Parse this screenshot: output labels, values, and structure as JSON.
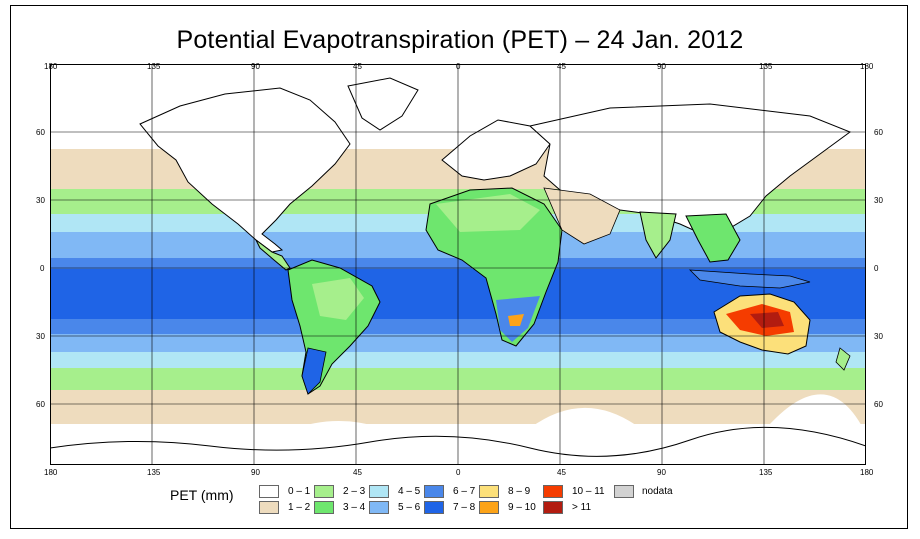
{
  "title": "Potential Evapotranspiration (PET) – 24 Jan. 2012",
  "axes": {
    "lon_labels": [
      "180",
      "135",
      "90",
      "45",
      "0",
      "45",
      "90",
      "135",
      "180"
    ],
    "lat_labels": [
      "60",
      "30",
      "0",
      "30",
      "60"
    ]
  },
  "legend": {
    "title": "PET (mm)",
    "items": [
      {
        "label": "0 – 1",
        "color": "#ffffff"
      },
      {
        "label": "1 – 2",
        "color": "#eedcbe"
      },
      {
        "label": "2 – 3",
        "color": "#a6ef8c"
      },
      {
        "label": "3 – 4",
        "color": "#6ee66e"
      },
      {
        "label": "4 – 5",
        "color": "#b0e6f5"
      },
      {
        "label": "5 – 6",
        "color": "#80b8f5"
      },
      {
        "label": "6 – 7",
        "color": "#4a87ea"
      },
      {
        "label": "7 – 8",
        "color": "#1f64e6"
      },
      {
        "label": "8 – 9",
        "color": "#fce07a"
      },
      {
        "label": "9 – 10",
        "color": "#fca318"
      },
      {
        "label": "10 – 11",
        "color": "#f53c00"
      },
      {
        "label": "> 11",
        "color": "#b21c10"
      },
      {
        "label": "nodata",
        "color": "#d2d2d2"
      }
    ]
  }
}
